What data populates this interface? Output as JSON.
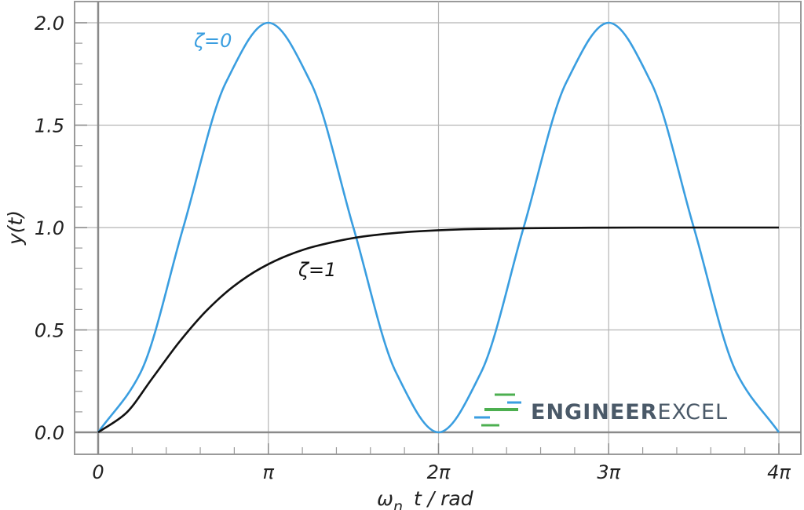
{
  "chart_data": {
    "type": "line",
    "title": "",
    "xlabel": "ω",
    "xlabel_sub": "n",
    "xlabel_rest": "t / rad",
    "ylabel": "y(t)",
    "xlim": [
      0,
      12.566370614
    ],
    "ylim": [
      0,
      2.0
    ],
    "x_ticks": [
      {
        "value": 0,
        "label": "0"
      },
      {
        "value": 3.141592654,
        "label": "π"
      },
      {
        "value": 6.283185307,
        "label": "2π"
      },
      {
        "value": 9.424777961,
        "label": "3π"
      },
      {
        "value": 12.566370614,
        "label": "4π"
      }
    ],
    "y_ticks": [
      {
        "value": 0.0,
        "label": "0.0"
      },
      {
        "value": 0.5,
        "label": "0.5"
      },
      {
        "value": 1.0,
        "label": "1.0"
      },
      {
        "value": 1.5,
        "label": "1.5"
      },
      {
        "value": 2.0,
        "label": "2.0"
      }
    ],
    "grid": true,
    "series": [
      {
        "name": "ζ=0",
        "color": "#3a9ee0",
        "x": [
          0,
          0.785,
          1.571,
          2.356,
          3.142,
          3.927,
          4.712,
          5.498,
          6.283,
          7.069,
          7.854,
          8.639,
          9.425,
          10.21,
          10.996,
          11.781,
          12.566
        ],
        "y": [
          0,
          0.293,
          1.0,
          1.707,
          2.0,
          1.707,
          1.0,
          0.293,
          0,
          0.293,
          1.0,
          1.707,
          2.0,
          1.707,
          1.0,
          0.293,
          0
        ]
      },
      {
        "name": "ζ=1",
        "color": "#111111",
        "x": [
          0,
          0.5,
          1.0,
          1.5,
          2.0,
          2.5,
          3.0,
          3.5,
          4.0,
          5.0,
          6.0,
          7.0,
          8.0,
          10.0,
          12.566
        ],
        "y": [
          0,
          0.09,
          0.264,
          0.442,
          0.594,
          0.713,
          0.801,
          0.864,
          0.908,
          0.96,
          0.983,
          0.993,
          0.997,
          1.0,
          1.0
        ]
      }
    ]
  },
  "watermark": {
    "brand_bold": "ENGINEER",
    "brand_light": "EXCEL"
  }
}
